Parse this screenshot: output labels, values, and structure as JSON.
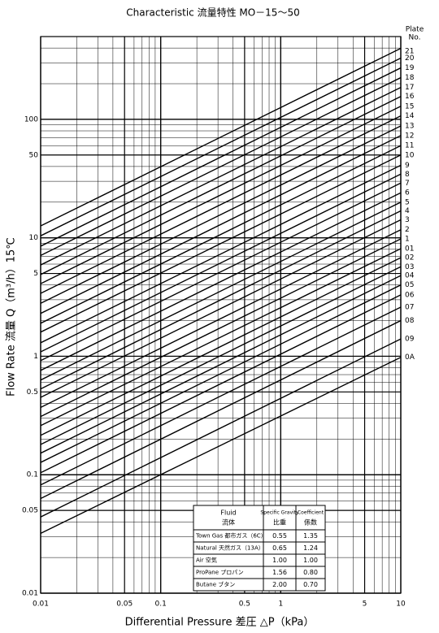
{
  "chart_data": {
    "type": "line",
    "title": "Characteristic 流量特性 MO－15～50",
    "x_label": "Differential Pressure 差圧 △P（kPa）",
    "y_label": "Flow Rate 流量 Q（m³/h）15℃",
    "legend_title": [
      "Plate",
      "No."
    ],
    "log_x": true,
    "log_y": true,
    "grid": true,
    "minor_grid": true,
    "xlim": [
      0.01,
      10
    ],
    "ylim": [
      0.01,
      500
    ],
    "xticks": [
      0.01,
      0.05,
      0.1,
      0.5,
      1,
      5,
      10
    ],
    "yticks": [
      0.01,
      0.05,
      0.1,
      0.5,
      1,
      5,
      10,
      50,
      100
    ],
    "x": [
      0.01,
      10
    ],
    "color": "#000000",
    "series": [
      {
        "name": "21",
        "values": [
          12.6,
          398
        ]
      },
      {
        "name": "20",
        "values": [
          10.4,
          329
        ]
      },
      {
        "name": "19",
        "values": [
          8.5,
          272
        ]
      },
      {
        "name": "18",
        "values": [
          7.1,
          225
        ]
      },
      {
        "name": "17",
        "values": [
          5.9,
          186
        ]
      },
      {
        "name": "16",
        "values": [
          4.9,
          156
        ]
      },
      {
        "name": "15",
        "values": [
          4.1,
          129
        ]
      },
      {
        "name": "14",
        "values": [
          3.4,
          107
        ]
      },
      {
        "name": "13",
        "values": [
          2.8,
          88
        ]
      },
      {
        "name": "12",
        "values": [
          2.3,
          73
        ]
      },
      {
        "name": "11",
        "values": [
          1.9,
          60
        ]
      },
      {
        "name": "10",
        "values": [
          1.6,
          50
        ]
      },
      {
        "name": "9",
        "values": [
          1.3,
          41
        ]
      },
      {
        "name": "8",
        "values": [
          1.09,
          34.5
        ]
      },
      {
        "name": "7",
        "values": [
          0.92,
          29
        ]
      },
      {
        "name": "6",
        "values": [
          0.76,
          24
        ]
      },
      {
        "name": "5",
        "values": [
          0.63,
          20
        ]
      },
      {
        "name": "4",
        "values": [
          0.53,
          16.9
        ]
      },
      {
        "name": "3",
        "values": [
          0.45,
          14.2
        ]
      },
      {
        "name": "2",
        "values": [
          0.37,
          11.7
        ]
      },
      {
        "name": "1",
        "values": [
          0.31,
          9.8
        ]
      },
      {
        "name": "01",
        "values": [
          0.26,
          8.1
        ]
      },
      {
        "name": "02",
        "values": [
          0.215,
          6.8
        ]
      },
      {
        "name": "03",
        "values": [
          0.18,
          5.7
        ]
      },
      {
        "name": "04",
        "values": [
          0.152,
          4.8
        ]
      },
      {
        "name": "05",
        "values": [
          0.127,
          4.0
        ]
      },
      {
        "name": "06",
        "values": [
          0.104,
          3.3
        ]
      },
      {
        "name": "07",
        "values": [
          0.082,
          2.6
        ]
      },
      {
        "name": "08",
        "values": [
          0.063,
          2.0
        ]
      },
      {
        "name": "09",
        "values": [
          0.044,
          1.4
        ]
      },
      {
        "name": "0A",
        "values": [
          0.032,
          0.98
        ]
      }
    ],
    "table": {
      "header": [
        [
          "Fluid",
          "流体"
        ],
        [
          "Specific Gravity",
          "比重"
        ],
        [
          "Coefficient",
          "係数"
        ]
      ],
      "rows": [
        [
          "Town Gas 都市ガス（6C）",
          "0.55",
          "1.35"
        ],
        [
          "Natural 天然ガス（13A）",
          "0.65",
          "1.24"
        ],
        [
          "Air 空気",
          "1.00",
          "1.00"
        ],
        [
          "ProPane プロパン",
          "1.56",
          "0.80"
        ],
        [
          "Butane ブタン",
          "2.00",
          "0.70"
        ]
      ]
    }
  }
}
